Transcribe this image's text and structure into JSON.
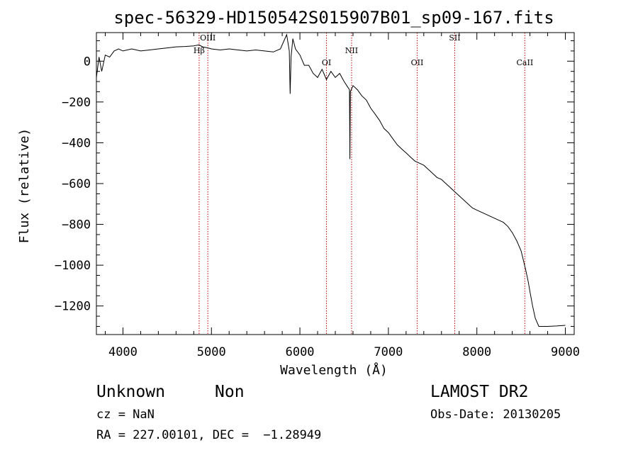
{
  "chart_data": {
    "type": "line",
    "title": "spec-56329-HD150542S015907B01_sp09-167.fits",
    "xlabel": "Wavelength (Å)",
    "ylabel": "Flux (relative)",
    "xlim": [
      3700,
      9100
    ],
    "ylim": [
      -1340,
      140
    ],
    "xticks": [
      4000,
      5000,
      6000,
      7000,
      8000,
      9000
    ],
    "xtick_labels": [
      "4000",
      "5000",
      "6000",
      "7000",
      "8000",
      "9000"
    ],
    "yticks": [
      0,
      -200,
      -400,
      -600,
      -800,
      -1000,
      -1200
    ],
    "ytick_labels": [
      "0",
      "−200",
      "−400",
      "−600",
      "−800",
      "−1000",
      "−1200"
    ],
    "grid": false,
    "series": [
      {
        "x": [
          3700,
          3730,
          3760,
          3800,
          3850,
          3900,
          3950,
          4000,
          4100,
          4200,
          4300,
          4400,
          4500,
          4600,
          4700,
          4800,
          4860,
          4900,
          4960,
          5000,
          5100,
          5200,
          5300,
          5400,
          5500,
          5600,
          5700,
          5780,
          5820,
          5850,
          5880,
          5890,
          5900,
          5920,
          5950,
          6000,
          6050,
          6100,
          6150,
          6200,
          6250,
          6300,
          6350,
          6400,
          6450,
          6500,
          6530,
          6560,
          6565,
          6570,
          6600,
          6650,
          6700,
          6750,
          6800,
          6850,
          6900,
          6950,
          7000,
          7050,
          7100,
          7150,
          7200,
          7250,
          7300,
          7350,
          7400,
          7450,
          7500,
          7550,
          7600,
          7650,
          7700,
          7750,
          7800,
          7850,
          7900,
          7950,
          8000,
          8050,
          8100,
          8150,
          8200,
          8250,
          8300,
          8350,
          8400,
          8450,
          8500,
          8550,
          8580,
          8600,
          8630,
          8660,
          8700,
          8800,
          8900,
          9000
        ],
        "y": [
          -80,
          20,
          -50,
          30,
          20,
          50,
          60,
          50,
          60,
          50,
          55,
          60,
          65,
          70,
          72,
          75,
          80,
          70,
          65,
          60,
          55,
          60,
          55,
          50,
          55,
          50,
          45,
          60,
          100,
          130,
          50,
          -160,
          20,
          110,
          60,
          30,
          -20,
          -20,
          -60,
          -80,
          -40,
          -90,
          -50,
          -80,
          -60,
          -100,
          -120,
          -140,
          -480,
          -150,
          -120,
          -140,
          -170,
          -190,
          -230,
          -260,
          -290,
          -330,
          -350,
          -380,
          -410,
          -430,
          -450,
          -470,
          -490,
          -500,
          -510,
          -530,
          -550,
          -570,
          -580,
          -600,
          -620,
          -640,
          -660,
          -680,
          -700,
          -720,
          -730,
          -740,
          -750,
          -760,
          -770,
          -780,
          -790,
          -810,
          -840,
          -880,
          -930,
          -1020,
          -1080,
          -1130,
          -1200,
          -1260,
          -1300,
          -1300,
          -1298,
          -1295
        ]
      }
    ],
    "lines": [
      {
        "label": "Hβ",
        "x": 4861
      },
      {
        "label": "OIII",
        "x": 4959
      },
      {
        "label": "OI",
        "x": 6300
      },
      {
        "label": "NII",
        "x": 6584
      },
      {
        "label": "OII",
        "x": 7325
      },
      {
        "label": "SII",
        "x": 7750
      },
      {
        "label": "CaII",
        "x": 8542
      }
    ],
    "line_color": "#c00000"
  },
  "info": {
    "obj_class": "Unknown",
    "obj_subclass": "Non",
    "survey": "LAMOST DR2",
    "cz": "cz = NaN",
    "obs_date": "Obs-Date: 20130205",
    "radec": "RA = 227.00101, DEC =  −1.28949"
  }
}
